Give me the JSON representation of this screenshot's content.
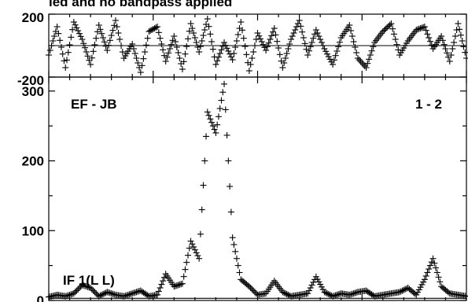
{
  "chart_data": [
    {
      "panel": "phase",
      "type": "scatter",
      "marker": "+",
      "title": "ied and no bandpass applied",
      "ylim": [
        -200,
        200
      ],
      "y_tick_labels": [
        "200",
        "-200"
      ],
      "y_ticks": [
        200,
        0,
        -200
      ],
      "xlim": [
        0,
        1
      ],
      "x": [
        0.0,
        0.02,
        0.04,
        0.06,
        0.08,
        0.1,
        0.12,
        0.14,
        0.16,
        0.18,
        0.2,
        0.22,
        0.24,
        0.26,
        0.28,
        0.3,
        0.32,
        0.34,
        0.36,
        0.38,
        0.4,
        0.42,
        0.44,
        0.46,
        0.48,
        0.5,
        0.52,
        0.54,
        0.56,
        0.58,
        0.6,
        0.62,
        0.64,
        0.66,
        0.68,
        0.7,
        0.72,
        0.74,
        0.76,
        0.78,
        0.8,
        0.82,
        0.84,
        0.86,
        0.88,
        0.9,
        0.92,
        0.94,
        0.96,
        0.98,
        1.0
      ],
      "y": [
        -60,
        120,
        -140,
        150,
        40,
        -120,
        130,
        -30,
        160,
        -80,
        10,
        -170,
        90,
        120,
        -100,
        60,
        -150,
        140,
        -40,
        170,
        -120,
        20,
        -90,
        150,
        -160,
        80,
        -30,
        110,
        -140,
        40,
        160,
        -60,
        100,
        -20,
        -120,
        50,
        130,
        -80,
        -140,
        20,
        90,
        140,
        -60,
        30,
        100,
        120,
        -20,
        60,
        -100,
        140,
        -80
      ]
    },
    {
      "panel": "amplitude",
      "type": "scatter",
      "marker": "+",
      "ylim": [
        0,
        320
      ],
      "y_tick_labels": [
        "300",
        "200",
        "100",
        "0"
      ],
      "y_ticks": [
        0,
        100,
        200,
        300
      ],
      "xlim": [
        0,
        1
      ],
      "annotations": {
        "baseline": "EF - JB",
        "polarization": "1 - 2",
        "if_label": "IF 1(L L)"
      },
      "x": [
        0.0,
        0.02,
        0.04,
        0.06,
        0.08,
        0.1,
        0.12,
        0.14,
        0.16,
        0.18,
        0.2,
        0.22,
        0.24,
        0.26,
        0.28,
        0.3,
        0.32,
        0.34,
        0.36,
        0.38,
        0.4,
        0.42,
        0.44,
        0.46,
        0.48,
        0.5,
        0.52,
        0.54,
        0.56,
        0.58,
        0.6,
        0.62,
        0.64,
        0.66,
        0.68,
        0.7,
        0.72,
        0.74,
        0.76,
        0.78,
        0.8,
        0.82,
        0.84,
        0.86,
        0.88,
        0.9,
        0.92,
        0.94,
        0.96,
        0.98,
        1.0
      ],
      "y": [
        5,
        8,
        6,
        10,
        22,
        18,
        6,
        12,
        8,
        6,
        10,
        14,
        6,
        8,
        38,
        20,
        24,
        85,
        60,
        270,
        240,
        310,
        90,
        30,
        20,
        8,
        10,
        28,
        12,
        6,
        8,
        10,
        34,
        12,
        6,
        10,
        8,
        12,
        14,
        6,
        8,
        10,
        12,
        18,
        8,
        30,
        60,
        20,
        10,
        8,
        6
      ]
    }
  ]
}
